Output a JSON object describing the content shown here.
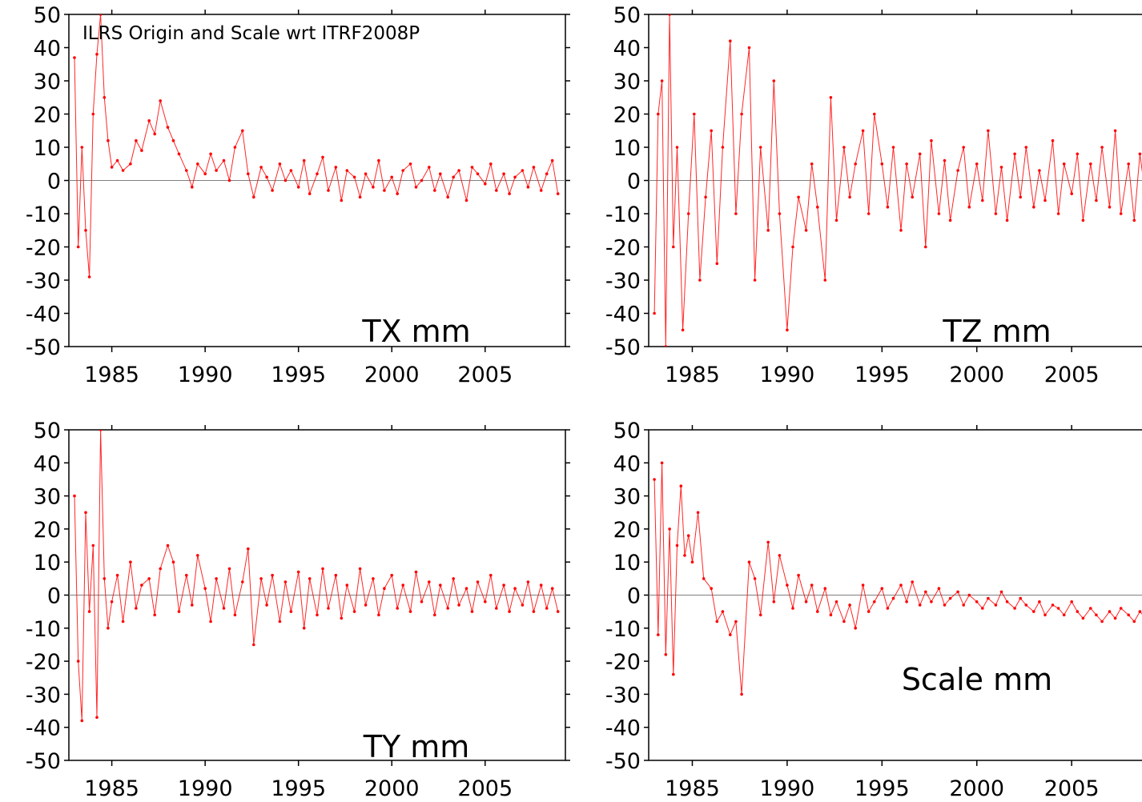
{
  "figure": {
    "title": "ILRS Origin and Scale wrt ITRF2008P",
    "line_color": "#ff0000",
    "zero_line_color": "#808080"
  },
  "chart_data": [
    {
      "type": "line",
      "label": "TX mm",
      "xlim": [
        1982.7,
        2009.3
      ],
      "ylim": [
        -50,
        50
      ],
      "x_ticks": [
        1985,
        1990,
        1995,
        2000,
        2005
      ],
      "y_ticks": [
        50,
        40,
        30,
        20,
        10,
        0,
        -10,
        -20,
        -30,
        -40,
        -50
      ],
      "x_tick_labels": [
        "1985",
        "1990",
        "1995",
        "2000",
        "2005"
      ],
      "y_tick_labels": [
        "50",
        "40",
        "30",
        "20",
        "10",
        "0",
        "-10",
        "-20",
        "-30",
        "-40",
        "-50"
      ],
      "grid": false,
      "series": [
        {
          "x": [
            1983.0,
            1983.2,
            1983.4,
            1983.6,
            1983.8,
            1984.0,
            1984.2,
            1984.4,
            1984.6,
            1984.8,
            1985.0,
            1985.3,
            1985.6,
            1986.0,
            1986.3,
            1986.6,
            1987.0,
            1987.3,
            1987.6,
            1988.0,
            1988.3,
            1988.6,
            1989.0,
            1989.3,
            1989.6,
            1990.0,
            1990.3,
            1990.6,
            1991.0,
            1991.3,
            1991.6,
            1992.0,
            1992.3,
            1992.6,
            1993.0,
            1993.3,
            1993.6,
            1994.0,
            1994.3,
            1994.6,
            1995.0,
            1995.3,
            1995.6,
            1996.0,
            1996.3,
            1996.6,
            1997.0,
            1997.3,
            1997.6,
            1998.0,
            1998.3,
            1998.6,
            1999.0,
            1999.3,
            1999.6,
            2000.0,
            2000.3,
            2000.6,
            2001.0,
            2001.3,
            2001.6,
            2002.0,
            2002.3,
            2002.6,
            2003.0,
            2003.3,
            2003.6,
            2004.0,
            2004.3,
            2004.6,
            2005.0,
            2005.3,
            2005.6,
            2006.0,
            2006.3,
            2006.6,
            2007.0,
            2007.3,
            2007.6,
            2008.0,
            2008.3,
            2008.6,
            2008.9
          ],
          "y": [
            37,
            -20,
            10,
            -15,
            -29,
            20,
            38,
            50,
            25,
            12,
            4,
            6,
            3,
            5,
            12,
            9,
            18,
            14,
            24,
            16,
            12,
            8,
            3,
            -2,
            5,
            2,
            8,
            3,
            6,
            0,
            10,
            15,
            2,
            -5,
            4,
            1,
            -3,
            5,
            0,
            3,
            -2,
            6,
            -4,
            2,
            7,
            -3,
            4,
            -6,
            3,
            1,
            -5,
            2,
            -2,
            6,
            -3,
            1,
            -4,
            3,
            5,
            -2,
            0,
            4,
            -3,
            2,
            -5,
            1,
            3,
            -6,
            4,
            2,
            -1,
            5,
            -3,
            2,
            -4,
            1,
            3,
            -2,
            4,
            -3,
            2,
            6,
            -4
          ]
        }
      ]
    },
    {
      "type": "line",
      "label": "TZ mm",
      "xlim": [
        1982.7,
        2009.3
      ],
      "ylim": [
        -50,
        50
      ],
      "x_ticks": [
        1985,
        1990,
        1995,
        2000,
        2005
      ],
      "y_ticks": [
        50,
        40,
        30,
        20,
        10,
        0,
        -10,
        -20,
        -30,
        -40,
        -50
      ],
      "x_tick_labels": [
        "1985",
        "1990",
        "1995",
        "2000",
        "2005"
      ],
      "y_tick_labels": [
        "50",
        "40",
        "30",
        "20",
        "10",
        "0",
        "-10",
        "-20",
        "-30",
        "-40",
        "-50"
      ],
      "grid": false,
      "series": [
        {
          "x": [
            1983.0,
            1983.2,
            1983.4,
            1983.6,
            1983.8,
            1984.0,
            1984.2,
            1984.5,
            1984.8,
            1985.1,
            1985.4,
            1985.7,
            1986.0,
            1986.3,
            1986.6,
            1987.0,
            1987.3,
            1987.6,
            1988.0,
            1988.3,
            1988.6,
            1989.0,
            1989.3,
            1989.6,
            1990.0,
            1990.3,
            1990.6,
            1991.0,
            1991.3,
            1991.6,
            1992.0,
            1992.3,
            1992.6,
            1993.0,
            1993.3,
            1993.6,
            1994.0,
            1994.3,
            1994.6,
            1995.0,
            1995.3,
            1995.6,
            1996.0,
            1996.3,
            1996.6,
            1997.0,
            1997.3,
            1997.6,
            1998.0,
            1998.3,
            1998.6,
            1999.0,
            1999.3,
            1999.6,
            2000.0,
            2000.3,
            2000.6,
            2001.0,
            2001.3,
            2001.6,
            2002.0,
            2002.3,
            2002.6,
            2003.0,
            2003.3,
            2003.6,
            2004.0,
            2004.3,
            2004.6,
            2005.0,
            2005.3,
            2005.6,
            2006.0,
            2006.3,
            2006.6,
            2007.0,
            2007.3,
            2007.6,
            2008.0,
            2008.3,
            2008.6,
            2008.9,
            2009.2
          ],
          "y": [
            -40,
            20,
            30,
            -50,
            50,
            -20,
            10,
            -45,
            -10,
            20,
            -30,
            -5,
            15,
            -25,
            10,
            42,
            -10,
            20,
            40,
            -30,
            10,
            -15,
            30,
            -10,
            -45,
            -20,
            -5,
            -15,
            5,
            -8,
            -30,
            25,
            -12,
            10,
            -5,
            5,
            15,
            -10,
            20,
            5,
            -8,
            10,
            -15,
            5,
            -5,
            8,
            -20,
            12,
            -10,
            6,
            -12,
            3,
            10,
            -8,
            5,
            -6,
            15,
            -10,
            4,
            -12,
            8,
            -5,
            10,
            -8,
            3,
            -6,
            12,
            -10,
            5,
            -4,
            8,
            -12,
            5,
            -6,
            10,
            -8,
            15,
            -10,
            5,
            -12,
            8,
            -5,
            3
          ]
        }
      ]
    },
    {
      "type": "line",
      "label": "TY mm",
      "xlim": [
        1982.7,
        2009.3
      ],
      "ylim": [
        -50,
        50
      ],
      "x_ticks": [
        1985,
        1990,
        1995,
        2000,
        2005
      ],
      "y_ticks": [
        50,
        40,
        30,
        20,
        10,
        0,
        -10,
        -20,
        -30,
        -40,
        -50
      ],
      "x_tick_labels": [
        "1985",
        "1990",
        "1995",
        "2000",
        "2005"
      ],
      "y_tick_labels": [
        "50",
        "40",
        "30",
        "20",
        "10",
        "0",
        "-10",
        "-20",
        "-30",
        "-40",
        "-50"
      ],
      "grid": false,
      "series": [
        {
          "x": [
            1983.0,
            1983.2,
            1983.4,
            1983.6,
            1983.8,
            1984.0,
            1984.2,
            1984.4,
            1984.6,
            1984.8,
            1985.0,
            1985.3,
            1985.6,
            1986.0,
            1986.3,
            1986.6,
            1987.0,
            1987.3,
            1987.6,
            1988.0,
            1988.3,
            1988.6,
            1989.0,
            1989.3,
            1989.6,
            1990.0,
            1990.3,
            1990.6,
            1991.0,
            1991.3,
            1991.6,
            1992.0,
            1992.3,
            1992.6,
            1993.0,
            1993.3,
            1993.6,
            1994.0,
            1994.3,
            1994.6,
            1995.0,
            1995.3,
            1995.6,
            1996.0,
            1996.3,
            1996.6,
            1997.0,
            1997.3,
            1997.6,
            1998.0,
            1998.3,
            1998.6,
            1999.0,
            1999.3,
            1999.6,
            2000.0,
            2000.3,
            2000.6,
            2001.0,
            2001.3,
            2001.6,
            2002.0,
            2002.3,
            2002.6,
            2003.0,
            2003.3,
            2003.6,
            2004.0,
            2004.3,
            2004.6,
            2005.0,
            2005.3,
            2005.6,
            2006.0,
            2006.3,
            2006.6,
            2007.0,
            2007.3,
            2007.6,
            2008.0,
            2008.3,
            2008.6,
            2008.9
          ],
          "y": [
            30,
            -20,
            -38,
            25,
            -5,
            15,
            -37,
            50,
            5,
            -10,
            -2,
            6,
            -8,
            10,
            -4,
            3,
            5,
            -6,
            8,
            15,
            10,
            -5,
            6,
            -3,
            12,
            2,
            -8,
            5,
            -4,
            8,
            -6,
            4,
            14,
            -15,
            5,
            -3,
            6,
            -8,
            4,
            -5,
            7,
            -10,
            5,
            -6,
            8,
            -4,
            6,
            -7,
            3,
            -5,
            8,
            -3,
            5,
            -6,
            2,
            6,
            -4,
            3,
            -5,
            7,
            -2,
            4,
            -6,
            3,
            -4,
            5,
            -3,
            2,
            -5,
            4,
            -2,
            6,
            -4,
            3,
            -5,
            2,
            -3,
            4,
            -5,
            3,
            -4,
            2,
            -5
          ]
        }
      ]
    },
    {
      "type": "line",
      "label": "Scale mm",
      "xlim": [
        1982.7,
        2009.3
      ],
      "ylim": [
        -50,
        50
      ],
      "x_ticks": [
        1985,
        1990,
        1995,
        2000,
        2005
      ],
      "y_ticks": [
        50,
        40,
        30,
        20,
        10,
        0,
        -10,
        -20,
        -30,
        -40,
        -50
      ],
      "x_tick_labels": [
        "1985",
        "1990",
        "1995",
        "2000",
        "2005"
      ],
      "y_tick_labels": [
        "50",
        "40",
        "30",
        "20",
        "10",
        "0",
        "-10",
        "-20",
        "-30",
        "-40",
        "-50"
      ],
      "grid": false,
      "series": [
        {
          "x": [
            1983.0,
            1983.2,
            1983.4,
            1983.6,
            1983.8,
            1984.0,
            1984.2,
            1984.4,
            1984.6,
            1984.8,
            1985.0,
            1985.3,
            1985.6,
            1986.0,
            1986.3,
            1986.6,
            1987.0,
            1987.3,
            1987.6,
            1988.0,
            1988.3,
            1988.6,
            1989.0,
            1989.3,
            1989.6,
            1990.0,
            1990.3,
            1990.6,
            1991.0,
            1991.3,
            1991.6,
            1992.0,
            1992.3,
            1992.6,
            1993.0,
            1993.3,
            1993.6,
            1994.0,
            1994.3,
            1994.6,
            1995.0,
            1995.3,
            1995.6,
            1996.0,
            1996.3,
            1996.6,
            1997.0,
            1997.3,
            1997.6,
            1998.0,
            1998.3,
            1998.6,
            1999.0,
            1999.3,
            1999.6,
            2000.0,
            2000.3,
            2000.6,
            2001.0,
            2001.3,
            2001.6,
            2002.0,
            2002.3,
            2002.6,
            2003.0,
            2003.3,
            2003.6,
            2004.0,
            2004.3,
            2004.6,
            2005.0,
            2005.3,
            2005.6,
            2006.0,
            2006.3,
            2006.6,
            2007.0,
            2007.3,
            2007.6,
            2008.0,
            2008.3,
            2008.6,
            2008.9,
            2009.2
          ],
          "y": [
            35,
            -12,
            40,
            -18,
            20,
            -24,
            15,
            33,
            12,
            18,
            10,
            25,
            5,
            2,
            -8,
            -5,
            -12,
            -8,
            -30,
            10,
            5,
            -6,
            16,
            -2,
            12,
            3,
            -4,
            6,
            -2,
            3,
            -5,
            2,
            -6,
            -2,
            -8,
            -3,
            -10,
            3,
            -5,
            -2,
            2,
            -4,
            -1,
            3,
            -2,
            4,
            -3,
            1,
            -2,
            2,
            -3,
            -1,
            1,
            -3,
            0,
            -2,
            -4,
            -1,
            -3,
            1,
            -2,
            -4,
            -1,
            -3,
            -5,
            -2,
            -6,
            -3,
            -4,
            -6,
            -2,
            -5,
            -7,
            -4,
            -6,
            -8,
            -5,
            -7,
            -4,
            -6,
            -8,
            -5,
            -7,
            -6
          ]
        }
      ]
    }
  ]
}
